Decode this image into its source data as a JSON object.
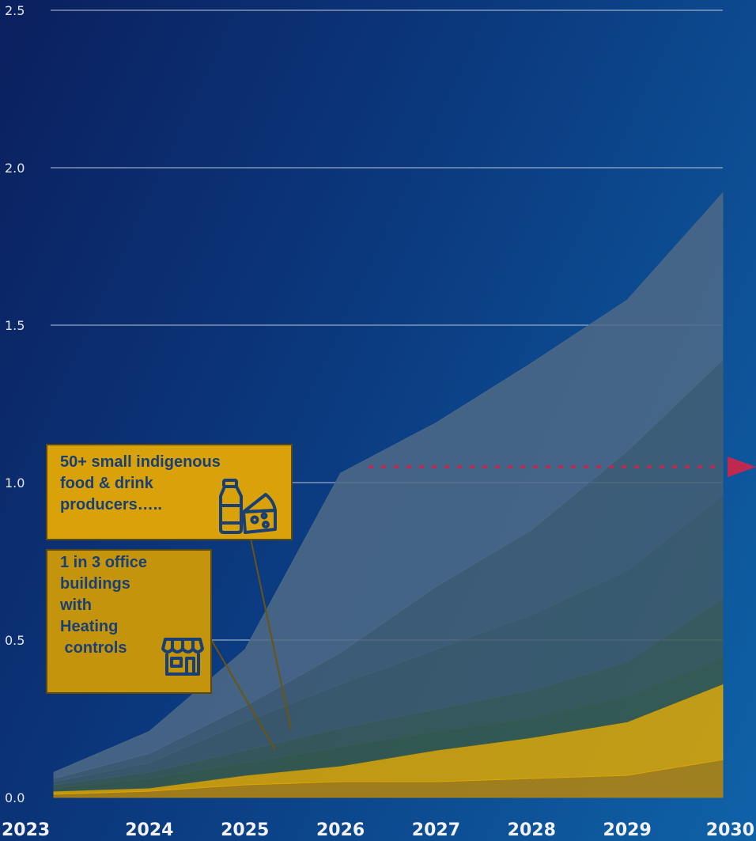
{
  "chart_data": {
    "type": "area",
    "stacked": true,
    "x": [
      "2023",
      "2024",
      "2025",
      "2026",
      "2027",
      "2028",
      "2029",
      "2030"
    ],
    "ylim": [
      0,
      2.5
    ],
    "yticks": [
      "0.0",
      "0.5",
      "1.0",
      "1.5",
      "2.0",
      "2.5"
    ],
    "grid": true,
    "series": [
      {
        "values": [
          0.01,
          0.02,
          0.04,
          0.05,
          0.05,
          0.06,
          0.07,
          0.12
        ],
        "color": "#b8860b"
      },
      {
        "values": [
          0.01,
          0.01,
          0.03,
          0.05,
          0.1,
          0.13,
          0.17,
          0.24
        ],
        "color": "#e0a800"
      },
      {
        "values": [
          0.01,
          0.03,
          0.04,
          0.06,
          0.06,
          0.06,
          0.08,
          0.08
        ],
        "color": "#3a5a48"
      },
      {
        "values": [
          0.01,
          0.02,
          0.04,
          0.06,
          0.07,
          0.09,
          0.11,
          0.19
        ],
        "color": "#3d5a55"
      },
      {
        "values": [
          0.01,
          0.03,
          0.09,
          0.14,
          0.19,
          0.24,
          0.29,
          0.33
        ],
        "color": "#415c68"
      },
      {
        "values": [
          0.01,
          0.03,
          0.05,
          0.1,
          0.2,
          0.27,
          0.38,
          0.43
        ],
        "color": "#455f73"
      },
      {
        "values": [
          0.02,
          0.07,
          0.18,
          0.57,
          0.52,
          0.53,
          0.48,
          0.53
        ],
        "color": "#4f6a86"
      }
    ],
    "target_line": {
      "value": 1.05,
      "color": "#c0294f"
    },
    "annotations": [
      {
        "lines": [
          "50+ small indigenous",
          "food & drink",
          "producers….."
        ],
        "icon": "milk-cheese-icon"
      },
      {
        "lines": [
          "1 in 3 office",
          "buildings",
          "with",
          "Heating",
          " controls"
        ],
        "icon": "storefront-icon"
      }
    ]
  }
}
